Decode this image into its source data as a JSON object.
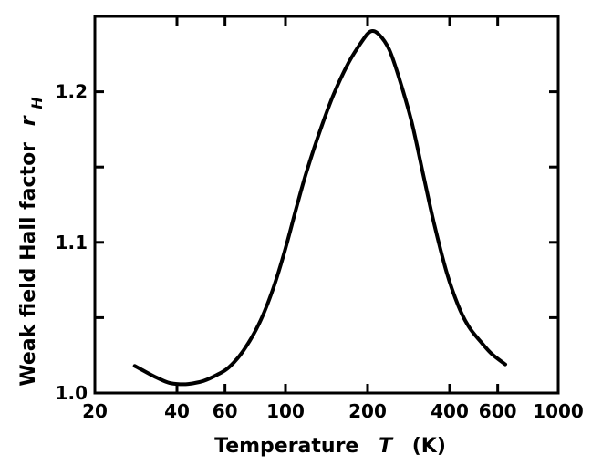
{
  "chart_data": {
    "type": "line",
    "xlabel": "Temperature T (K)",
    "xlabel_parts": {
      "prefix": "Temperature",
      "symbol": "T",
      "unit": "(K)"
    },
    "ylabel": "Weak field Hall factor rH",
    "ylabel_parts": {
      "prefix": "Weak field Hall factor",
      "symbol": "r",
      "subscript": "H"
    },
    "x_scale": "log",
    "xlim": [
      20,
      1000
    ],
    "ylim": [
      1.0,
      1.25
    ],
    "x_ticks": [
      20,
      40,
      60,
      100,
      200,
      400,
      600,
      1000
    ],
    "x_tick_labels": [
      "20",
      "40",
      "60",
      "100",
      "200",
      "400",
      "600",
      "1000"
    ],
    "y_ticks": [
      1.0,
      1.1,
      1.2
    ],
    "y_tick_labels": [
      "1.0",
      "1.1",
      "1.2"
    ],
    "y_minor_ticks": [
      1.05,
      1.15,
      1.25
    ],
    "grid": false,
    "series": [
      {
        "x": [
          28,
          30,
          33,
          37,
          40,
          44,
          50,
          56,
          62,
          70,
          80,
          90,
          100,
          110,
          120,
          135,
          150,
          170,
          190,
          205,
          220,
          240,
          260,
          290,
          320,
          350,
          390,
          430,
          470,
          520,
          570,
          640
        ],
        "y": [
          1.018,
          1.015,
          1.011,
          1.007,
          1.006,
          1.006,
          1.008,
          1.012,
          1.017,
          1.028,
          1.046,
          1.069,
          1.096,
          1.124,
          1.148,
          1.176,
          1.198,
          1.219,
          1.233,
          1.24,
          1.238,
          1.228,
          1.21,
          1.18,
          1.145,
          1.113,
          1.08,
          1.058,
          1.044,
          1.034,
          1.026,
          1.019
        ]
      }
    ]
  }
}
